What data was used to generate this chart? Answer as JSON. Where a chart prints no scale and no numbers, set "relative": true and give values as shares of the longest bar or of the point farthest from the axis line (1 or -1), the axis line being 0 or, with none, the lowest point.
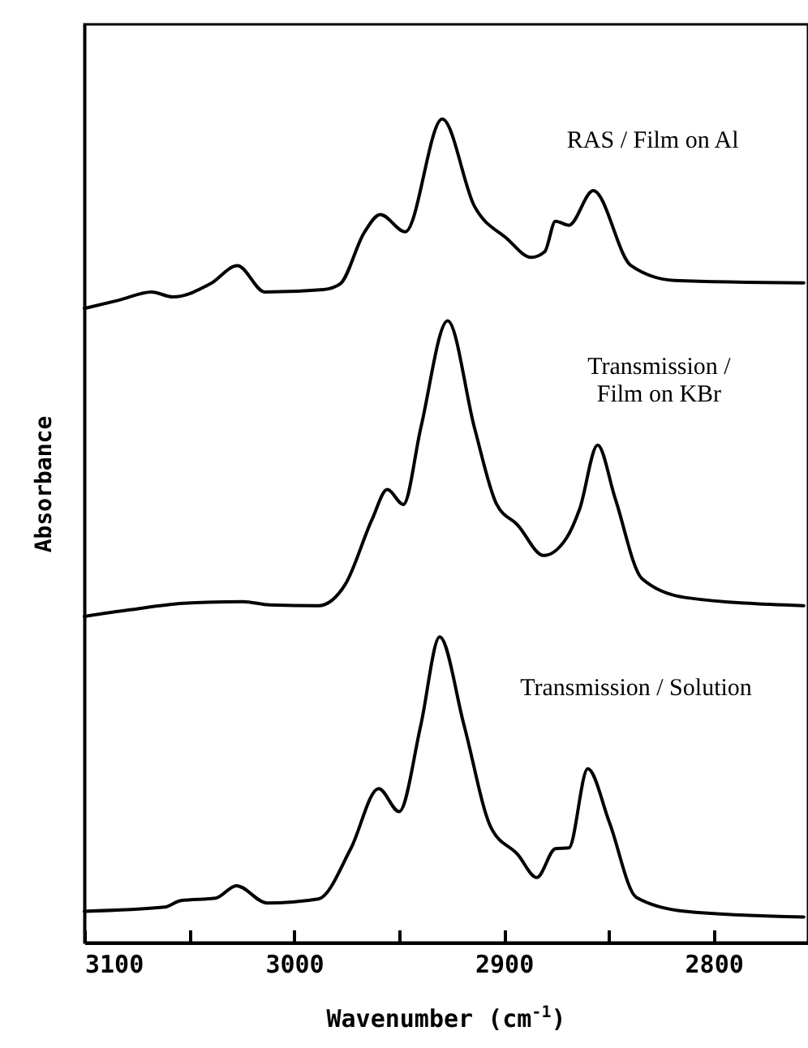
{
  "chart_data": {
    "type": "line",
    "relative": true,
    "xlabel": "Wavenumber (cm$^{-1}$)",
    "ylabel": "Absorbance",
    "xlim": [
      3100,
      2755
    ],
    "xticks": [
      3100,
      {
        "value": 3050,
        "label": null
      },
      3000,
      {
        "value": 2950,
        "label": null
      },
      2900,
      {
        "value": 2850,
        "label": null
      },
      2800
    ],
    "marker": "none",
    "line_style": "solid",
    "series": [
      {
        "name": "RAS / Film on Al",
        "color": "#000000",
        "x": [
          3100,
          3083.6,
          3068,
          3057.8,
          3039.9,
          3027,
          3014,
          2985.9,
          2978,
          2966.6,
          2958.9,
          2947,
          2929.4,
          2914,
          2898.6,
          2887,
          2880.5,
          2875.4,
          2869,
          2857.4,
          2839.4,
          2818.8,
          2757
        ],
        "values": [
          0.77,
          0.78,
          0.79,
          0.784,
          0.8,
          0.822,
          0.79,
          0.793,
          0.8,
          0.862,
          0.884,
          0.863,
          1,
          0.894,
          0.855,
          0.832,
          0.839,
          0.876,
          0.871,
          0.913,
          0.822,
          0.804,
          0.801
        ]
      },
      {
        "name": "Transmission / Film on KBr",
        "color": "#000000",
        "x": [
          3100,
          3078.4,
          3052.7,
          3024.4,
          3011.6,
          2988.4,
          2975.6,
          2962.8,
          2955.6,
          2947.9,
          2939.6,
          2926.8,
          2914,
          2903.6,
          2893.4,
          2881,
          2870.2,
          2863.8,
          2855.3,
          2847,
          2834.2,
          2813.6,
          2757
        ],
        "values": [
          0.396,
          0.404,
          0.412,
          0.414,
          0.41,
          0.409,
          0.435,
          0.514,
          0.55,
          0.532,
          0.625,
          0.755,
          0.625,
          0.533,
          0.507,
          0.47,
          0.491,
          0.527,
          0.604,
          0.54,
          0.442,
          0.419,
          0.409
        ]
      },
      {
        "name": "Transmission / Solution",
        "color": "#000000",
        "x": [
          3100,
          3061.7,
          3054,
          3037.3,
          3027.5,
          3012.9,
          2988.4,
          2973,
          2959.7,
          2949.9,
          2939.6,
          2930.6,
          2919,
          2906.2,
          2893.4,
          2884.3,
          2875.4,
          2869,
          2860,
          2849.7,
          2836.9,
          2813.6,
          2757
        ],
        "values": [
          0.038,
          0.043,
          0.051,
          0.054,
          0.069,
          0.048,
          0.053,
          0.114,
          0.187,
          0.159,
          0.264,
          0.371,
          0.264,
          0.14,
          0.107,
          0.079,
          0.114,
          0.115,
          0.211,
          0.146,
          0.055,
          0.038,
          0.031
        ]
      }
    ]
  }
}
